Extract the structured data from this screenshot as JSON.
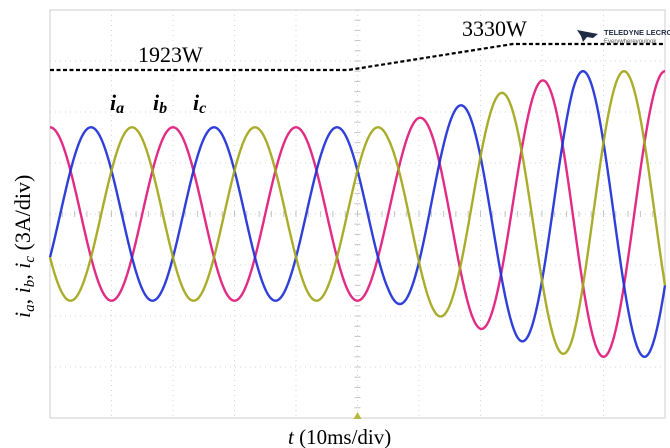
{
  "chart_data": {
    "type": "line",
    "xlabel_var": "t",
    "xlabel_unit": " (10ms/div)",
    "ylabel": {
      "p1_var": "i",
      "p1_sub": "a",
      "sep1": ", ",
      "p2_var": "i",
      "p2_sub": "b",
      "sep2": ", ",
      "p3_var": "i",
      "p3_sub": "c",
      "tail": " (3A/div)"
    },
    "x_divisions": 10,
    "y_divisions": 8,
    "grid": true,
    "time_per_div_ms": 10,
    "current_per_div_A": 3,
    "fundamental_frequency_hz": 50,
    "power_step": {
      "before": "1923W",
      "after": "3330W",
      "ramp_start_div": 5.5,
      "ramp_end_div": 8.5
    },
    "series": [
      {
        "name": "ia",
        "color": "#e0197a",
        "amplitude_before_div": 1.7,
        "amplitude_after_div": 2.8,
        "phase_deg": 90
      },
      {
        "name": "ib",
        "color": "#1d2fd6",
        "amplitude_before_div": 1.7,
        "amplitude_after_div": 2.8,
        "phase_deg": -30
      },
      {
        "name": "ic",
        "color": "#a3a61a",
        "amplitude_before_div": 1.7,
        "amplitude_after_div": 2.8,
        "phase_deg": 210
      }
    ],
    "legend": [
      {
        "var": "i",
        "sub": "a"
      },
      {
        "var": "i",
        "sub": "b"
      },
      {
        "var": "i",
        "sub": "c"
      }
    ]
  },
  "brand": {
    "name": "TELEDYNE LECROY",
    "tagline": "Everywhereyoulook"
  }
}
